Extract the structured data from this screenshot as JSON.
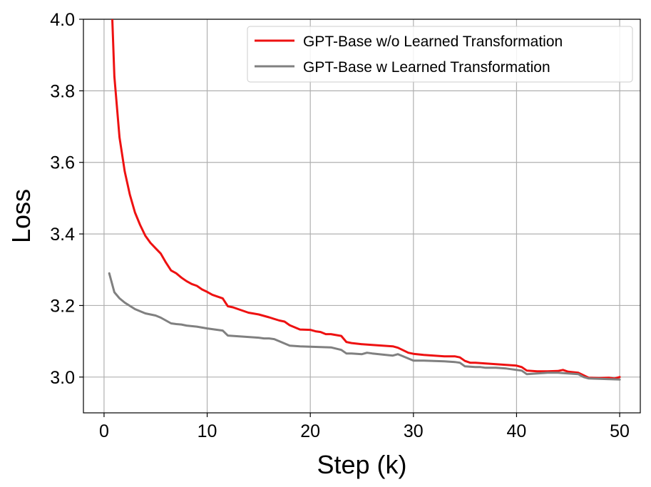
{
  "chart_data": {
    "type": "line",
    "xlabel": "Step (k)",
    "ylabel": "Loss",
    "xlim": [
      -2,
      52
    ],
    "ylim": [
      2.9,
      4.0
    ],
    "xticks": [
      0,
      10,
      20,
      30,
      40,
      50
    ],
    "yticks": [
      3.0,
      3.2,
      3.4,
      3.6,
      3.8,
      4.0
    ],
    "x_tick_labels": [
      "0",
      "10",
      "20",
      "30",
      "40",
      "50"
    ],
    "y_tick_labels": [
      "3.0",
      "3.2",
      "3.4",
      "3.6",
      "3.8",
      "4.0"
    ],
    "grid": true,
    "legend_position": "top-right",
    "series": [
      {
        "name": "GPT-Base w/o Learned Transformation",
        "color": "#ee1111",
        "x": [
          0.8,
          1.0,
          1.5,
          2.0,
          2.5,
          3.0,
          3.5,
          4.0,
          4.5,
          5.0,
          5.5,
          6.0,
          6.5,
          7.0,
          7.5,
          8.0,
          8.5,
          9.0,
          9.5,
          10.0,
          10.5,
          11.0,
          11.5,
          12.0,
          12.5,
          13.0,
          13.5,
          14.0,
          15.0,
          16.0,
          17.0,
          17.5,
          18.0,
          19.0,
          20.0,
          20.5,
          21.0,
          21.5,
          22.0,
          23.0,
          23.5,
          24.0,
          25.0,
          26.0,
          27.0,
          28.0,
          28.5,
          29.0,
          29.5,
          30.0,
          31.0,
          32.0,
          33.0,
          34.0,
          34.5,
          35.0,
          35.5,
          36.0,
          37.0,
          38.0,
          39.0,
          40.0,
          40.5,
          41.0,
          42.0,
          43.0,
          44.0,
          44.5,
          45.0,
          46.0,
          46.5,
          47.0,
          48.0,
          49.0,
          49.5,
          50.0
        ],
        "values": [
          4.0,
          3.84,
          3.67,
          3.575,
          3.51,
          3.46,
          3.425,
          3.395,
          3.375,
          3.36,
          3.345,
          3.32,
          3.298,
          3.29,
          3.278,
          3.268,
          3.26,
          3.255,
          3.245,
          3.238,
          3.23,
          3.225,
          3.22,
          3.198,
          3.195,
          3.19,
          3.185,
          3.18,
          3.175,
          3.167,
          3.158,
          3.155,
          3.145,
          3.133,
          3.132,
          3.128,
          3.126,
          3.12,
          3.12,
          3.115,
          3.098,
          3.095,
          3.092,
          3.09,
          3.088,
          3.086,
          3.082,
          3.075,
          3.068,
          3.065,
          3.062,
          3.06,
          3.058,
          3.058,
          3.055,
          3.045,
          3.04,
          3.04,
          3.038,
          3.036,
          3.034,
          3.032,
          3.028,
          3.018,
          3.016,
          3.016,
          3.017,
          3.02,
          3.015,
          3.012,
          3.005,
          2.998,
          2.997,
          2.998,
          2.996,
          3.0
        ]
      },
      {
        "name": "GPT-Base w Learned Transformation",
        "color": "#808080",
        "x": [
          0.5,
          1.0,
          1.5,
          2.0,
          3.0,
          4.0,
          5.0,
          5.5,
          6.0,
          6.5,
          7.0,
          7.5,
          8.0,
          9.0,
          10.0,
          11.0,
          11.5,
          12.0,
          13.0,
          14.0,
          15.0,
          15.5,
          16.0,
          16.5,
          17.0,
          18.0,
          19.0,
          20.0,
          21.0,
          22.0,
          23.0,
          23.5,
          24.0,
          25.0,
          25.5,
          26.0,
          27.0,
          28.0,
          28.5,
          29.0,
          30.0,
          31.0,
          32.0,
          33.0,
          34.0,
          34.5,
          35.0,
          36.0,
          36.5,
          37.0,
          38.0,
          39.0,
          40.0,
          40.5,
          41.0,
          42.0,
          43.0,
          44.0,
          45.0,
          46.0,
          46.5,
          47.0,
          48.0,
          49.0,
          50.0
        ],
        "values": [
          3.29,
          3.237,
          3.22,
          3.208,
          3.19,
          3.178,
          3.172,
          3.166,
          3.158,
          3.15,
          3.148,
          3.147,
          3.144,
          3.141,
          3.136,
          3.132,
          3.13,
          3.116,
          3.114,
          3.112,
          3.11,
          3.108,
          3.108,
          3.106,
          3.1,
          3.088,
          3.086,
          3.085,
          3.084,
          3.083,
          3.076,
          3.066,
          3.066,
          3.064,
          3.068,
          3.066,
          3.063,
          3.06,
          3.064,
          3.058,
          3.046,
          3.046,
          3.045,
          3.044,
          3.042,
          3.04,
          3.03,
          3.028,
          3.028,
          3.026,
          3.026,
          3.024,
          3.02,
          3.018,
          3.008,
          3.01,
          3.012,
          3.012,
          3.01,
          3.008,
          3.0,
          2.996,
          2.995,
          2.994,
          2.993
        ]
      }
    ]
  }
}
